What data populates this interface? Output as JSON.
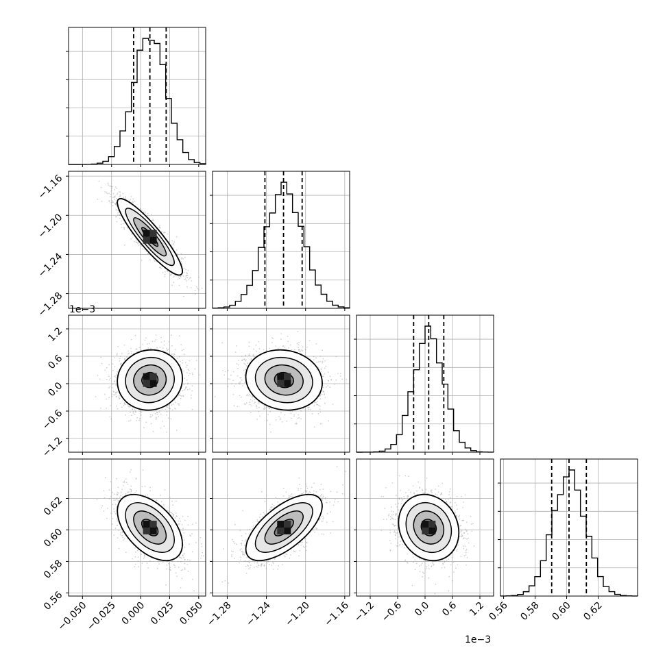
{
  "chart_data": {
    "type": "corner",
    "grid": true,
    "colors": {
      "hist_line": "#000000",
      "quantile_line": "#000000",
      "grid": "#b0b0b0",
      "scatter": "#9a9a9a",
      "contour": "#000000"
    },
    "offset_labels": {
      "y_row3": "1e−3",
      "x_col3": "1e−3"
    },
    "params": [
      {
        "range": [
          -0.062,
          0.056
        ],
        "ticks": [
          -0.05,
          -0.025,
          0.0,
          0.025,
          0.05
        ],
        "tick_labels": [
          "−0.050",
          "−0.025",
          "0.000",
          "0.025",
          "0.050"
        ],
        "mean": 0.008,
        "std": 0.014,
        "quantiles": [
          -0.006,
          0.008,
          0.022
        ],
        "hist_y_ticks": 4
      },
      {
        "range": [
          -1.295,
          -1.155
        ],
        "ticks": [
          -1.28,
          -1.24,
          -1.2,
          -1.16
        ],
        "tick_labels": [
          "−1.28",
          "−1.24",
          "−1.20",
          "−1.16"
        ],
        "mean": -1.222,
        "std": 0.0195,
        "quantiles": [
          -1.2415,
          -1.2225,
          -1.2035
        ],
        "hist_y_ticks": 4
      },
      {
        "range": [
          -1.5,
          1.5
        ],
        "ticks": [
          -1.2,
          -0.6,
          0.0,
          0.6,
          1.2
        ],
        "tick_labels": [
          "−1.2",
          "−0.6",
          "0.0",
          "0.6",
          "1.2"
        ],
        "mean": 0.08,
        "std": 0.33,
        "quantiles": [
          -0.25,
          0.08,
          0.41
        ],
        "hist_y_ticks": 4
      },
      {
        "range": [
          0.558,
          0.645
        ],
        "ticks": [
          0.56,
          0.58,
          0.6,
          0.62
        ],
        "tick_labels": [
          "0.56",
          "0.58",
          "0.60",
          "0.62"
        ],
        "mean": 0.6015,
        "std": 0.0105,
        "quantiles": [
          0.5905,
          0.6015,
          0.6125
        ],
        "hist_y_ticks": 4
      }
    ],
    "correlations": [
      [
        1.0,
        -0.9,
        0.05,
        -0.5
      ],
      [
        -0.9,
        1.0,
        -0.1,
        0.65
      ],
      [
        0.05,
        -0.1,
        1.0,
        -0.15
      ],
      [
        -0.5,
        0.65,
        -0.15,
        1.0
      ]
    ],
    "contour_levels_sigma": [
      0.5,
      1.0,
      1.5,
      2.0
    ]
  }
}
